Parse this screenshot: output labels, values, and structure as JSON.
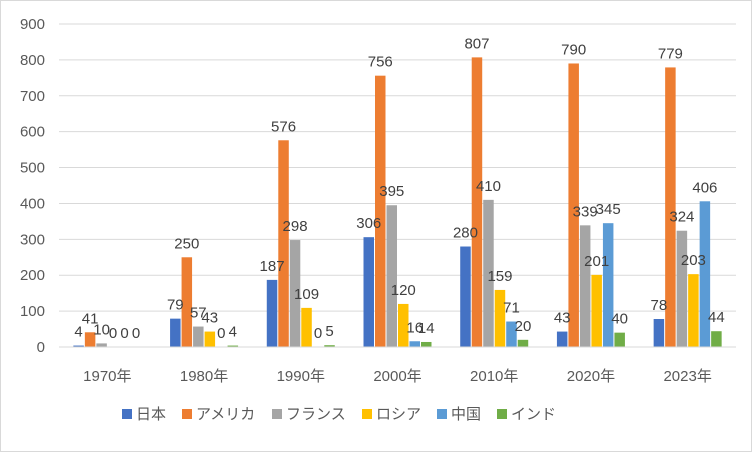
{
  "chart_data": {
    "type": "bar",
    "categories": [
      "1970年",
      "1980年",
      "1990年",
      "2000年",
      "2010年",
      "2020年",
      "2023年"
    ],
    "series": [
      {
        "name": "日本",
        "color": "#4472c4",
        "values": [
          4,
          79,
          187,
          306,
          280,
          43,
          78
        ]
      },
      {
        "name": "アメリカ",
        "color": "#ed7d31",
        "values": [
          41,
          250,
          576,
          756,
          807,
          790,
          779
        ]
      },
      {
        "name": "フランス",
        "color": "#a5a5a5",
        "values": [
          10,
          57,
          298,
          395,
          410,
          339,
          324
        ]
      },
      {
        "name": "ロシア",
        "color": "#ffc000",
        "values": [
          0,
          43,
          109,
          120,
          159,
          201,
          203
        ]
      },
      {
        "name": "中国",
        "color": "#5b9bd5",
        "values": [
          0,
          0,
          0,
          16,
          71,
          345,
          406
        ]
      },
      {
        "name": "インド",
        "color": "#70ad47",
        "values": [
          0,
          4,
          5,
          14,
          20,
          40,
          44
        ]
      }
    ],
    "ylim": [
      0,
      900
    ],
    "yticks": [
      0,
      100,
      200,
      300,
      400,
      500,
      600,
      700,
      800,
      900
    ],
    "grid": true,
    "legend": "bottom",
    "title": "",
    "xlabel": "",
    "ylabel": ""
  }
}
